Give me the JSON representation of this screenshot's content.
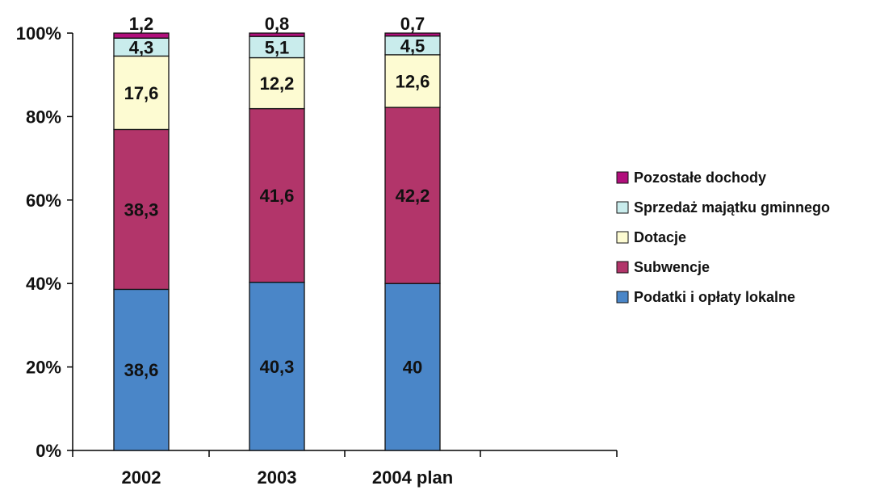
{
  "chart_data": {
    "type": "bar",
    "stacked": true,
    "percent_stacked": true,
    "categories": [
      "2002",
      "2003",
      "2004 plan"
    ],
    "series": [
      {
        "name": "Podatki i opłaty lokalne",
        "values": [
          38.6,
          40.3,
          40
        ],
        "labels": [
          "38,6",
          "40,3",
          "40"
        ],
        "color": "#4a86c8"
      },
      {
        "name": "Subwencje",
        "values": [
          38.3,
          41.6,
          42.2
        ],
        "labels": [
          "38,3",
          "41,6",
          "42,2"
        ],
        "color": "#b2356a"
      },
      {
        "name": "Dotacje",
        "values": [
          17.6,
          12.2,
          12.6
        ],
        "labels": [
          "17,6",
          "12,2",
          "12,6"
        ],
        "color": "#fdfbd2"
      },
      {
        "name": "Sprzedaż majątku gminnego",
        "values": [
          4.3,
          5.1,
          4.5
        ],
        "labels": [
          "4,3",
          "5,1",
          "4,5"
        ],
        "color": "#c9ecec"
      },
      {
        "name": "Pozostałe dochody",
        "values": [
          1.2,
          0.8,
          0.7
        ],
        "labels": [
          "1,2",
          "0,8",
          "0,7"
        ],
        "color": "#b10f7c"
      }
    ],
    "y_ticks": [
      "0%",
      "20%",
      "40%",
      "60%",
      "80%",
      "100%"
    ],
    "ylim": [
      0,
      100
    ],
    "title": "",
    "xlabel": "",
    "ylabel": "",
    "legend_position": "right",
    "grid": false
  }
}
